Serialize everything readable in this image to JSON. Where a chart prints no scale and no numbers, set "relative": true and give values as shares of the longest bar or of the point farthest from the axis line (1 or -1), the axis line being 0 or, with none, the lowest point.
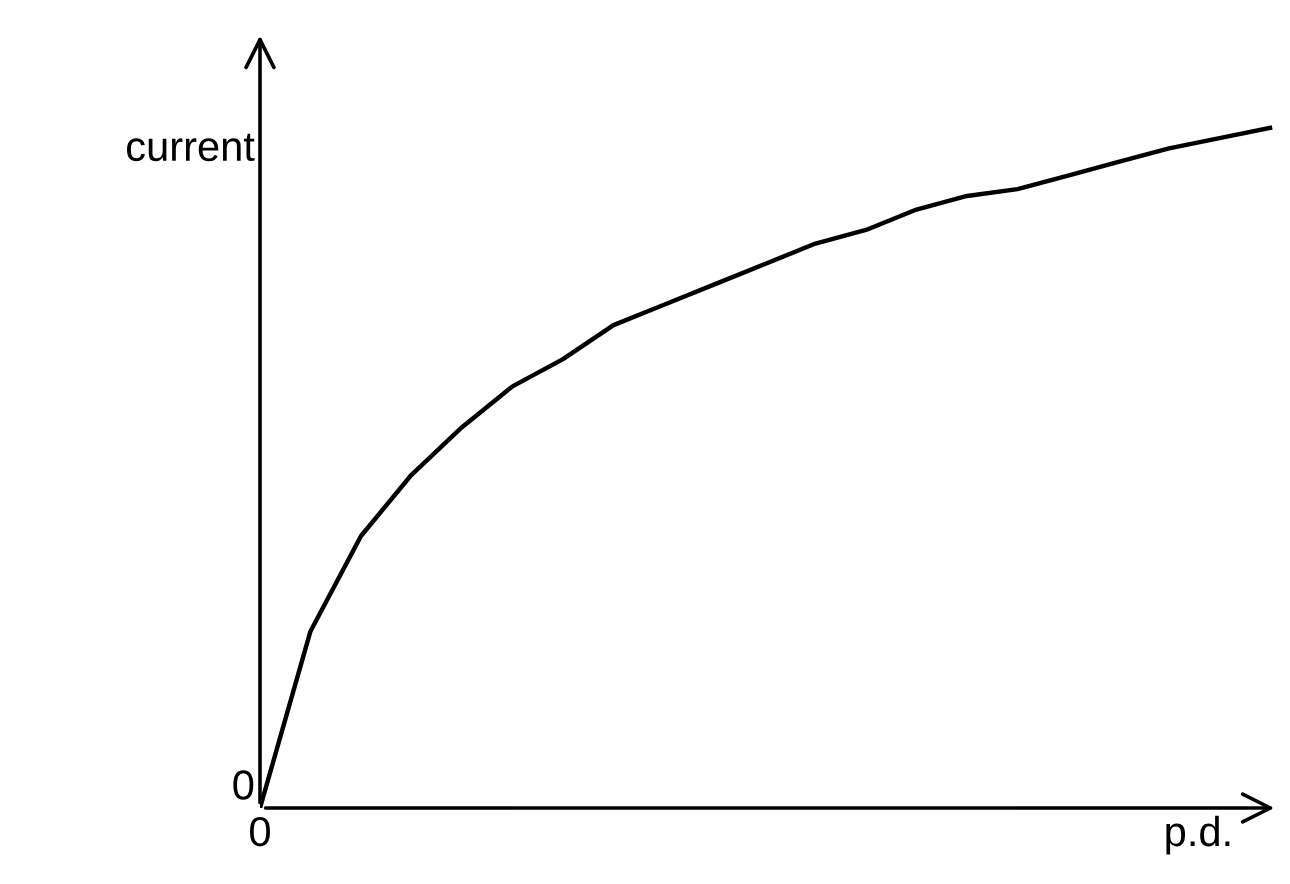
{
  "chart_data": {
    "type": "line",
    "relative": true,
    "xlabel": "p.d.",
    "ylabel": "current",
    "categories": [
      null,
      null,
      null,
      null,
      null,
      null,
      null,
      null,
      null,
      null,
      null,
      null,
      null,
      null,
      null,
      null,
      null,
      null,
      null,
      null,
      null
    ],
    "series": [
      {
        "color": "#000000",
        "values": [
          0,
          0.26,
          0.4,
          0.49,
          0.56,
          0.62,
          0.66,
          0.71,
          0.74,
          0.77,
          0.8,
          0.83,
          0.85,
          0.88,
          0.9,
          0.91,
          0.93,
          0.95,
          0.97,
          0.985,
          1
        ]
      }
    ],
    "annotations": [
      "0",
      "0"
    ],
    "legend": false,
    "marker": "none",
    "line_style": "solid"
  }
}
